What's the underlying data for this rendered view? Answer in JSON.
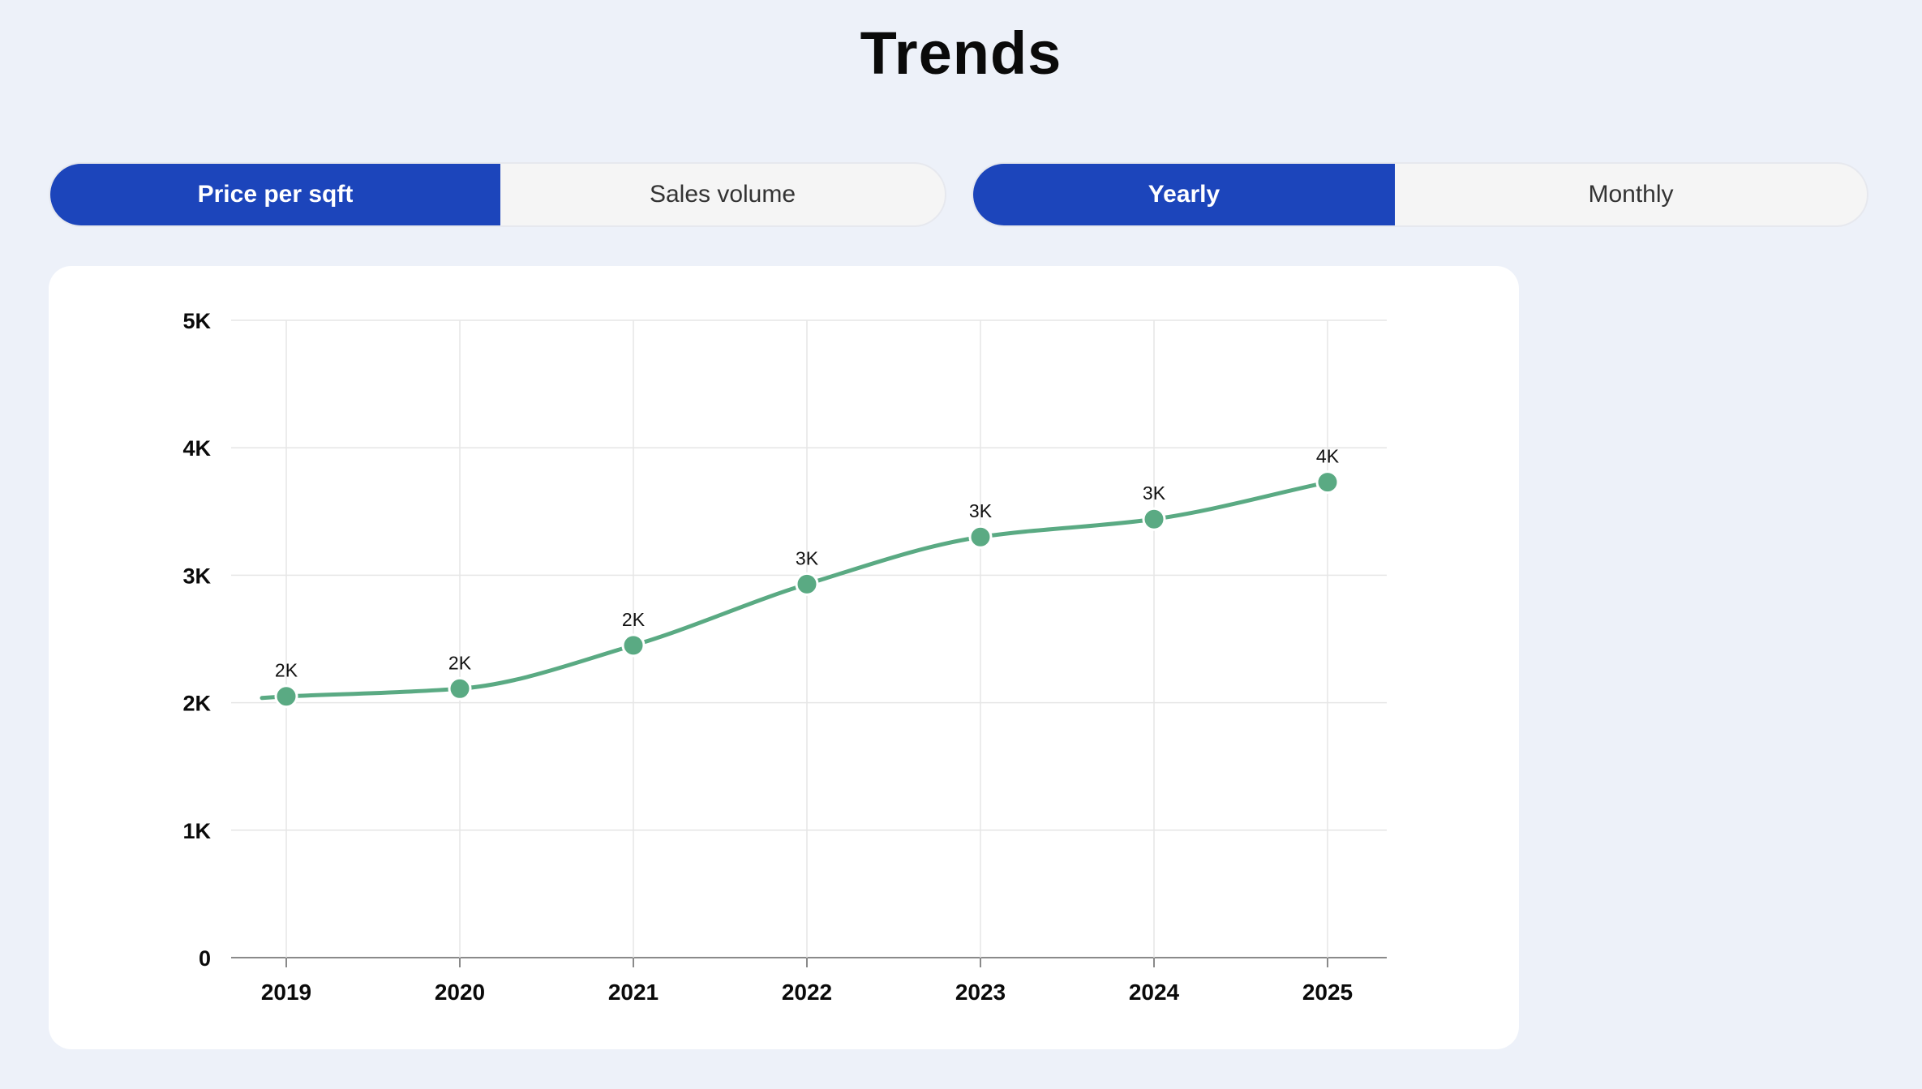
{
  "page": {
    "title": "Trends"
  },
  "metric_toggle": {
    "options": [
      "Price per sqft",
      "Sales volume"
    ],
    "selected": "Price per sqft"
  },
  "period_toggle": {
    "options": [
      "Yearly",
      "Monthly"
    ],
    "selected": "Yearly"
  },
  "colors": {
    "accent": "#1c45bb",
    "line": "#5aaa83",
    "grid": "#e6e6e6",
    "background": "#edf1f9"
  },
  "chart_data": {
    "type": "line",
    "categories": [
      "2019",
      "2020",
      "2021",
      "2022",
      "2023",
      "2024",
      "2025"
    ],
    "values": [
      2050,
      2110,
      2450,
      2930,
      3300,
      3440,
      3730
    ],
    "data_labels": [
      "2K",
      "2K",
      "2K",
      "3K",
      "3K",
      "3K",
      "4K"
    ],
    "y_ticks": [
      0,
      1000,
      2000,
      3000,
      4000,
      5000
    ],
    "y_tick_labels": [
      "0",
      "1K",
      "2K",
      "3K",
      "4K",
      "5K"
    ],
    "ylim": [
      0,
      5000
    ],
    "grid": true,
    "smooth": true
  }
}
